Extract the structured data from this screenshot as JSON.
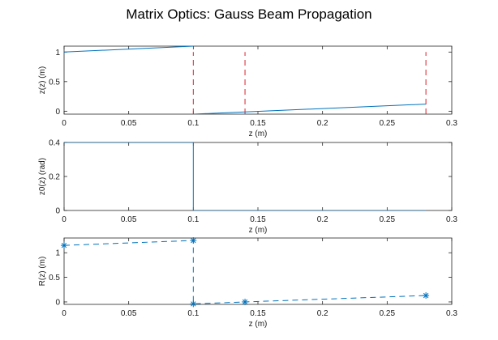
{
  "figure": {
    "title": "Matrix Optics: Gauss Beam Propagation"
  },
  "colors": {
    "series": "#0072bd",
    "marker_lines": "#d9202b",
    "axes": "#262626"
  },
  "chart_data": [
    {
      "type": "line",
      "xlabel": "z (m)",
      "ylabel": "z(z) (m)",
      "xlim": [
        0,
        0.3
      ],
      "ylim": [
        -0.05,
        1.1
      ],
      "xticks": [
        0,
        0.05,
        0.1,
        0.15,
        0.2,
        0.25,
        0.3
      ],
      "xtick_labels": [
        "0",
        "0.05",
        "0.1",
        "0.15",
        "0.2",
        "0.25",
        "0.3"
      ],
      "yticks": [
        0,
        0.5,
        1
      ],
      "ytick_labels": [
        "0",
        "0.5",
        "1"
      ],
      "series": [
        {
          "x": [
            0,
            0.1
          ],
          "y": [
            1.0,
            1.1
          ],
          "style": "solid"
        },
        {
          "x": [
            0.1,
            0.28
          ],
          "y": [
            -0.05,
            0.12
          ],
          "style": "solid"
        }
      ],
      "vlines": {
        "x": [
          0.1,
          0.14,
          0.28
        ],
        "y_range": [
          -0.05,
          1.0
        ],
        "style": "dashed"
      }
    },
    {
      "type": "line",
      "xlabel": "z (m)",
      "ylabel": "z0(z) (rad)",
      "xlim": [
        0,
        0.3
      ],
      "ylim": [
        0,
        0.4
      ],
      "xticks": [
        0,
        0.05,
        0.1,
        0.15,
        0.2,
        0.25,
        0.3
      ],
      "xtick_labels": [
        "0",
        "0.05",
        "0.1",
        "0.15",
        "0.2",
        "0.25",
        "0.3"
      ],
      "yticks": [
        0,
        0.2,
        0.4
      ],
      "ytick_labels": [
        "0",
        "0.2",
        "0.4"
      ],
      "series": [
        {
          "x": [
            0,
            0.1,
            0.1,
            0.28
          ],
          "y": [
            0.4,
            0.4,
            0.0,
            0.0
          ],
          "style": "solid"
        }
      ]
    },
    {
      "type": "line",
      "xlabel": "z (m)",
      "ylabel": "R(z) (m)",
      "xlim": [
        0,
        0.3
      ],
      "ylim": [
        -0.05,
        1.3
      ],
      "xticks": [
        0,
        0.05,
        0.1,
        0.15,
        0.2,
        0.25,
        0.3
      ],
      "xtick_labels": [
        "0",
        "0.05",
        "0.1",
        "0.15",
        "0.2",
        "0.25",
        "0.3"
      ],
      "yticks": [
        0,
        0.5,
        1
      ],
      "ytick_labels": [
        "0",
        "0.5",
        "1"
      ],
      "series": [
        {
          "x": [
            0,
            0.1,
            0.1,
            0.14,
            0.28
          ],
          "y": [
            1.15,
            1.25,
            -0.04,
            0.0,
            0.13
          ],
          "style": "dashed",
          "marker": "asterisk"
        }
      ]
    }
  ]
}
